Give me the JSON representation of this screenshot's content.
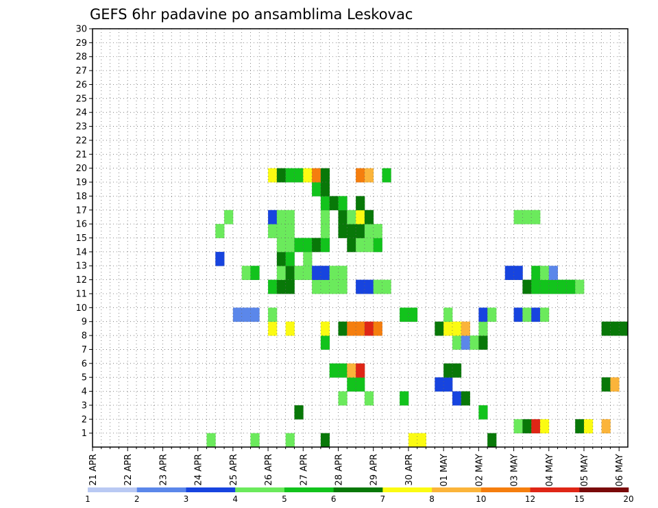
{
  "chart_data": {
    "type": "heatmap",
    "title": "GEFS 6hr padavine po ansamblima Leskovac",
    "x_tick_labels": [
      "21 APR",
      "22 APR",
      "23 APR",
      "24 APR",
      "25 APR",
      "26 APR",
      "27 APR",
      "28 APR",
      "29 APR",
      "30 APR",
      "01 MAY",
      "02 MAY",
      "03 MAY",
      "04 MAY",
      "05 MAY",
      "06 MAY"
    ],
    "y_tick_labels": [
      "1",
      "2",
      "3",
      "4",
      "5",
      "6",
      "7",
      "8",
      "9",
      "10",
      "11",
      "12",
      "13",
      "14",
      "15",
      "16",
      "17",
      "18",
      "19",
      "20",
      "21",
      "22",
      "23",
      "24",
      "25",
      "26",
      "27",
      "28",
      "29",
      "30"
    ],
    "x_steps_per_day": 4,
    "x_range_steps": [
      0,
      61
    ],
    "y_range": [
      0,
      30
    ],
    "grid": true,
    "legend_position": "bottom",
    "legend_labels": [
      "1",
      "2",
      "3",
      "4",
      "5",
      "6",
      "7",
      "8",
      "10",
      "12",
      "15",
      "20"
    ],
    "colors": [
      "#b9c9f3",
      "#5b87ea",
      "#1744df",
      "#6bea5c",
      "#12c31c",
      "#087808",
      "#fbfb12",
      "#fbb43a",
      "#f57e0e",
      "#df2616",
      "#7a0a0a"
    ],
    "cells": [
      [
        1,
        13,
        3
      ],
      [
        1,
        18,
        3
      ],
      [
        1,
        22,
        3
      ],
      [
        1,
        26,
        5
      ],
      [
        1,
        36,
        6
      ],
      [
        1,
        37,
        6
      ],
      [
        1,
        45,
        5
      ],
      [
        2,
        48,
        3
      ],
      [
        2,
        49,
        5
      ],
      [
        2,
        50,
        9
      ],
      [
        2,
        51,
        6
      ],
      [
        2,
        55,
        5
      ],
      [
        2,
        56,
        6
      ],
      [
        2,
        58,
        7
      ],
      [
        3,
        23,
        5
      ],
      [
        3,
        44,
        4
      ],
      [
        4,
        28,
        3
      ],
      [
        4,
        31,
        3
      ],
      [
        4,
        35,
        4
      ],
      [
        4,
        41,
        2
      ],
      [
        4,
        42,
        5
      ],
      [
        5,
        29,
        4
      ],
      [
        5,
        30,
        4
      ],
      [
        5,
        39,
        2
      ],
      [
        5,
        40,
        2
      ],
      [
        5,
        58,
        5
      ],
      [
        5,
        59,
        7
      ],
      [
        6,
        27,
        4
      ],
      [
        6,
        28,
        4
      ],
      [
        6,
        29,
        7
      ],
      [
        6,
        30,
        9
      ],
      [
        6,
        40,
        5
      ],
      [
        6,
        41,
        5
      ],
      [
        8,
        26,
        4
      ],
      [
        8,
        41,
        3
      ],
      [
        8,
        42,
        1
      ],
      [
        8,
        43,
        3
      ],
      [
        8,
        44,
        5
      ],
      [
        9,
        20,
        6
      ],
      [
        9,
        22,
        6
      ],
      [
        9,
        26,
        6
      ],
      [
        9,
        28,
        5
      ],
      [
        9,
        29,
        8
      ],
      [
        9,
        30,
        8
      ],
      [
        9,
        31,
        9
      ],
      [
        9,
        32,
        8
      ],
      [
        9,
        39,
        5
      ],
      [
        9,
        40,
        6
      ],
      [
        9,
        41,
        6
      ],
      [
        9,
        42,
        7
      ],
      [
        9,
        44,
        3
      ],
      [
        9,
        58,
        5
      ],
      [
        9,
        59,
        5
      ],
      [
        9,
        60,
        5
      ],
      [
        10,
        16,
        1
      ],
      [
        10,
        17,
        1
      ],
      [
        10,
        18,
        1
      ],
      [
        10,
        20,
        3
      ],
      [
        10,
        35,
        4
      ],
      [
        10,
        36,
        4
      ],
      [
        10,
        40,
        3
      ],
      [
        10,
        44,
        2
      ],
      [
        10,
        45,
        3
      ],
      [
        10,
        48,
        2
      ],
      [
        10,
        49,
        3
      ],
      [
        10,
        50,
        2
      ],
      [
        10,
        51,
        3
      ],
      [
        12,
        20,
        4
      ],
      [
        12,
        21,
        5
      ],
      [
        12,
        22,
        5
      ],
      [
        12,
        25,
        3
      ],
      [
        12,
        26,
        3
      ],
      [
        12,
        27,
        3
      ],
      [
        12,
        28,
        3
      ],
      [
        12,
        30,
        2
      ],
      [
        12,
        31,
        2
      ],
      [
        12,
        32,
        3
      ],
      [
        12,
        33,
        3
      ],
      [
        12,
        49,
        5
      ],
      [
        12,
        50,
        4
      ],
      [
        12,
        51,
        4
      ],
      [
        12,
        52,
        4
      ],
      [
        12,
        53,
        4
      ],
      [
        12,
        54,
        4
      ],
      [
        12,
        55,
        3
      ],
      [
        13,
        17,
        3
      ],
      [
        13,
        18,
        4
      ],
      [
        13,
        21,
        3
      ],
      [
        13,
        22,
        5
      ],
      [
        13,
        23,
        3
      ],
      [
        13,
        24,
        3
      ],
      [
        13,
        25,
        2
      ],
      [
        13,
        26,
        2
      ],
      [
        13,
        27,
        3
      ],
      [
        13,
        28,
        3
      ],
      [
        13,
        47,
        2
      ],
      [
        13,
        48,
        2
      ],
      [
        13,
        50,
        4
      ],
      [
        13,
        51,
        3
      ],
      [
        13,
        52,
        1
      ],
      [
        14,
        14,
        2
      ],
      [
        14,
        21,
        5
      ],
      [
        14,
        22,
        4
      ],
      [
        14,
        24,
        3
      ],
      [
        15,
        21,
        3
      ],
      [
        15,
        22,
        3
      ],
      [
        15,
        23,
        4
      ],
      [
        15,
        24,
        4
      ],
      [
        15,
        25,
        5
      ],
      [
        15,
        26,
        4
      ],
      [
        15,
        29,
        5
      ],
      [
        15,
        30,
        3
      ],
      [
        15,
        31,
        3
      ],
      [
        15,
        32,
        4
      ],
      [
        16,
        14,
        3
      ],
      [
        16,
        20,
        3
      ],
      [
        16,
        21,
        3
      ],
      [
        16,
        22,
        3
      ],
      [
        16,
        26,
        3
      ],
      [
        16,
        28,
        5
      ],
      [
        16,
        29,
        5
      ],
      [
        16,
        30,
        5
      ],
      [
        16,
        31,
        3
      ],
      [
        16,
        32,
        3
      ],
      [
        17,
        15,
        3
      ],
      [
        17,
        20,
        2
      ],
      [
        17,
        21,
        3
      ],
      [
        17,
        22,
        3
      ],
      [
        17,
        26,
        3
      ],
      [
        17,
        28,
        5
      ],
      [
        17,
        29,
        3
      ],
      [
        17,
        30,
        6
      ],
      [
        17,
        31,
        5
      ],
      [
        17,
        48,
        3
      ],
      [
        17,
        49,
        3
      ],
      [
        17,
        50,
        3
      ],
      [
        18,
        26,
        4
      ],
      [
        18,
        27,
        5
      ],
      [
        18,
        28,
        4
      ],
      [
        18,
        30,
        5
      ],
      [
        19,
        25,
        4
      ],
      [
        19,
        26,
        5
      ],
      [
        20,
        20,
        6
      ],
      [
        20,
        21,
        5
      ],
      [
        20,
        22,
        4
      ],
      [
        20,
        23,
        4
      ],
      [
        20,
        24,
        6
      ],
      [
        20,
        25,
        8
      ],
      [
        20,
        26,
        5
      ],
      [
        20,
        30,
        8
      ],
      [
        20,
        31,
        7
      ],
      [
        20,
        33,
        4
      ]
    ]
  }
}
